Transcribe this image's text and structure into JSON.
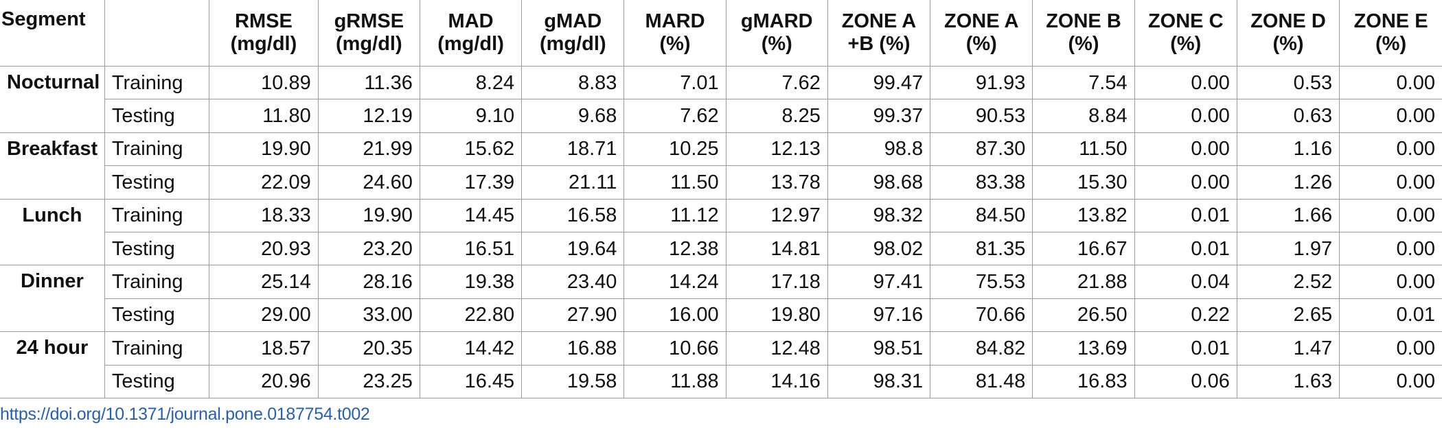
{
  "table": {
    "headers": [
      [
        "Segment"
      ],
      [
        ""
      ],
      [
        "RMSE",
        "(mg/dl)"
      ],
      [
        "gRMSE",
        "(mg/dl)"
      ],
      [
        "MAD",
        "(mg/dl)"
      ],
      [
        "gMAD",
        "(mg/dl)"
      ],
      [
        "MARD",
        "(%)"
      ],
      [
        "gMARD",
        "(%)"
      ],
      [
        "ZONE A",
        "+B (%)"
      ],
      [
        "ZONE A",
        "(%)"
      ],
      [
        "ZONE B",
        "(%)"
      ],
      [
        "ZONE C",
        "(%)"
      ],
      [
        "ZONE D",
        "(%)"
      ],
      [
        "ZONE E",
        "(%)"
      ]
    ],
    "segments": [
      {
        "name": "Nocturnal",
        "rows": [
          {
            "phase": "Training",
            "values": [
              "10.89",
              "11.36",
              "8.24",
              "8.83",
              "7.01",
              "7.62",
              "99.47",
              "91.93",
              "7.54",
              "0.00",
              "0.53",
              "0.00"
            ]
          },
          {
            "phase": "Testing",
            "values": [
              "11.80",
              "12.19",
              "9.10",
              "9.68",
              "7.62",
              "8.25",
              "99.37",
              "90.53",
              "8.84",
              "0.00",
              "0.63",
              "0.00"
            ]
          }
        ]
      },
      {
        "name": "Breakfast",
        "rows": [
          {
            "phase": "Training",
            "values": [
              "19.90",
              "21.99",
              "15.62",
              "18.71",
              "10.25",
              "12.13",
              "98.8",
              "87.30",
              "11.50",
              "0.00",
              "1.16",
              "0.00"
            ]
          },
          {
            "phase": "Testing",
            "values": [
              "22.09",
              "24.60",
              "17.39",
              "21.11",
              "11.50",
              "13.78",
              "98.68",
              "83.38",
              "15.30",
              "0.00",
              "1.26",
              "0.00"
            ]
          }
        ]
      },
      {
        "name": "Lunch",
        "rows": [
          {
            "phase": "Training",
            "values": [
              "18.33",
              "19.90",
              "14.45",
              "16.58",
              "11.12",
              "12.97",
              "98.32",
              "84.50",
              "13.82",
              "0.01",
              "1.66",
              "0.00"
            ]
          },
          {
            "phase": "Testing",
            "values": [
              "20.93",
              "23.20",
              "16.51",
              "19.64",
              "12.38",
              "14.81",
              "98.02",
              "81.35",
              "16.67",
              "0.01",
              "1.97",
              "0.00"
            ]
          }
        ]
      },
      {
        "name": "Dinner",
        "rows": [
          {
            "phase": "Training",
            "values": [
              "25.14",
              "28.16",
              "19.38",
              "23.40",
              "14.24",
              "17.18",
              "97.41",
              "75.53",
              "21.88",
              "0.04",
              "2.52",
              "0.00"
            ]
          },
          {
            "phase": "Testing",
            "values": [
              "29.00",
              "33.00",
              "22.80",
              "27.90",
              "16.00",
              "19.80",
              "97.16",
              "70.66",
              "26.50",
              "0.22",
              "2.65",
              "0.01"
            ]
          }
        ]
      },
      {
        "name": "24 hour",
        "rows": [
          {
            "phase": "Training",
            "values": [
              "18.57",
              "20.35",
              "14.42",
              "16.88",
              "10.66",
              "12.48",
              "98.51",
              "84.82",
              "13.69",
              "0.01",
              "1.47",
              "0.00"
            ]
          },
          {
            "phase": "Testing",
            "values": [
              "20.96",
              "23.25",
              "16.45",
              "19.58",
              "11.88",
              "14.16",
              "98.31",
              "81.48",
              "16.83",
              "0.06",
              "1.63",
              "0.00"
            ]
          }
        ]
      }
    ]
  },
  "doi_link": "https://doi.org/10.1371/journal.pone.0187754.t002",
  "colors": {
    "link": "#2a5fa6",
    "grid": "#9a9a9a",
    "text": "#111111"
  }
}
